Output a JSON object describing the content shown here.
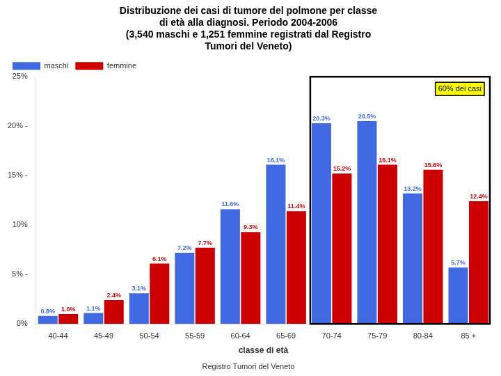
{
  "chart_data": {
    "type": "bar",
    "title": [
      "Distribuzione dei casi di tumore del polmone per classe",
      "di età alla diagnosi. Periodo 2004-2006",
      "(3,540 maschi e 1,251 femmine registrati dal Registro",
      "Tumori del Veneto)"
    ],
    "subtitle": "Registro Tumori del Veneto",
    "xlabel": "classe di età",
    "categories": [
      "40-44",
      "45-49",
      "50-54",
      "55-59",
      "60-64",
      "65-69",
      "70-74",
      "75-79",
      "80-84",
      "85 +"
    ],
    "series": [
      {
        "name": "maschi",
        "color": "#4169E1",
        "values": [
          0.8,
          1.1,
          3.1,
          7.2,
          11.6,
          16.1,
          20.3,
          20.5,
          13.2,
          5.7
        ],
        "value_labels": [
          "0.8%",
          "1.1%",
          "3.1%",
          "7.2%",
          "11.6%",
          "16.1%",
          "20.3%",
          "20.5%",
          "13.2%",
          "5.7%"
        ]
      },
      {
        "name": "femmine",
        "color": "#CC0000",
        "values": [
          1.0,
          2.4,
          6.1,
          7.7,
          9.3,
          11.4,
          15.2,
          16.1,
          15.6,
          12.4
        ],
        "value_labels": [
          "1.0%",
          "2.4%",
          "6.1%",
          "7.7%",
          "9.3%",
          "11.4%",
          "15.2%",
          "16.1%",
          "15.6%",
          "12.4%"
        ]
      }
    ],
    "ylim": [
      0,
      25
    ],
    "yticks": [
      {
        "value": 0,
        "label": "0%"
      },
      {
        "value": 5,
        "label": "5% -"
      },
      {
        "value": 10,
        "label": "10%"
      },
      {
        "value": 15,
        "label": "15% -"
      },
      {
        "value": 20,
        "label": "20% -"
      },
      {
        "value": 25,
        "label": "25%"
      }
    ],
    "annotations": [
      {
        "text": "60% dei casi",
        "categories": [
          "70-74",
          "75-79",
          "80-84",
          "85 +"
        ],
        "color": "#FFFF00"
      }
    ],
    "data_labels": true,
    "grid": false,
    "legend": "upper left"
  }
}
